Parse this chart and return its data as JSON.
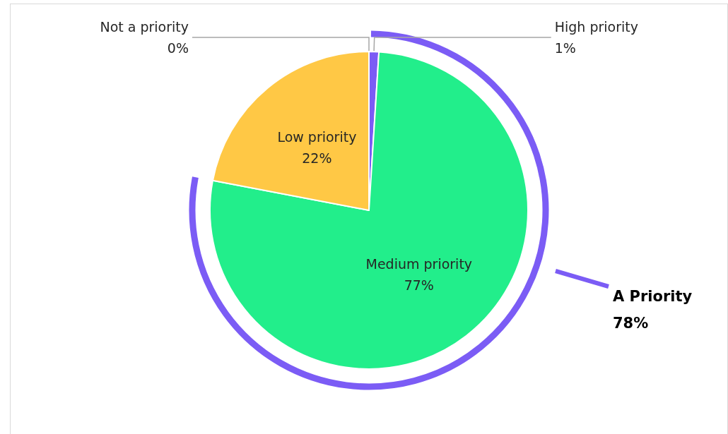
{
  "chart_data": {
    "type": "pie",
    "categories": [
      "High priority",
      "Medium priority",
      "Low priority",
      "Not a priority"
    ],
    "values": [
      1,
      77,
      22,
      0
    ],
    "value_labels": [
      "1%",
      "77%",
      "22%",
      "0%"
    ],
    "colors": [
      "#7b5cf5",
      "#22ee8b",
      "#ffc845",
      "#a5a5a5"
    ],
    "annotations": [
      "A Priority\n78%"
    ],
    "legend": false
  }
}
